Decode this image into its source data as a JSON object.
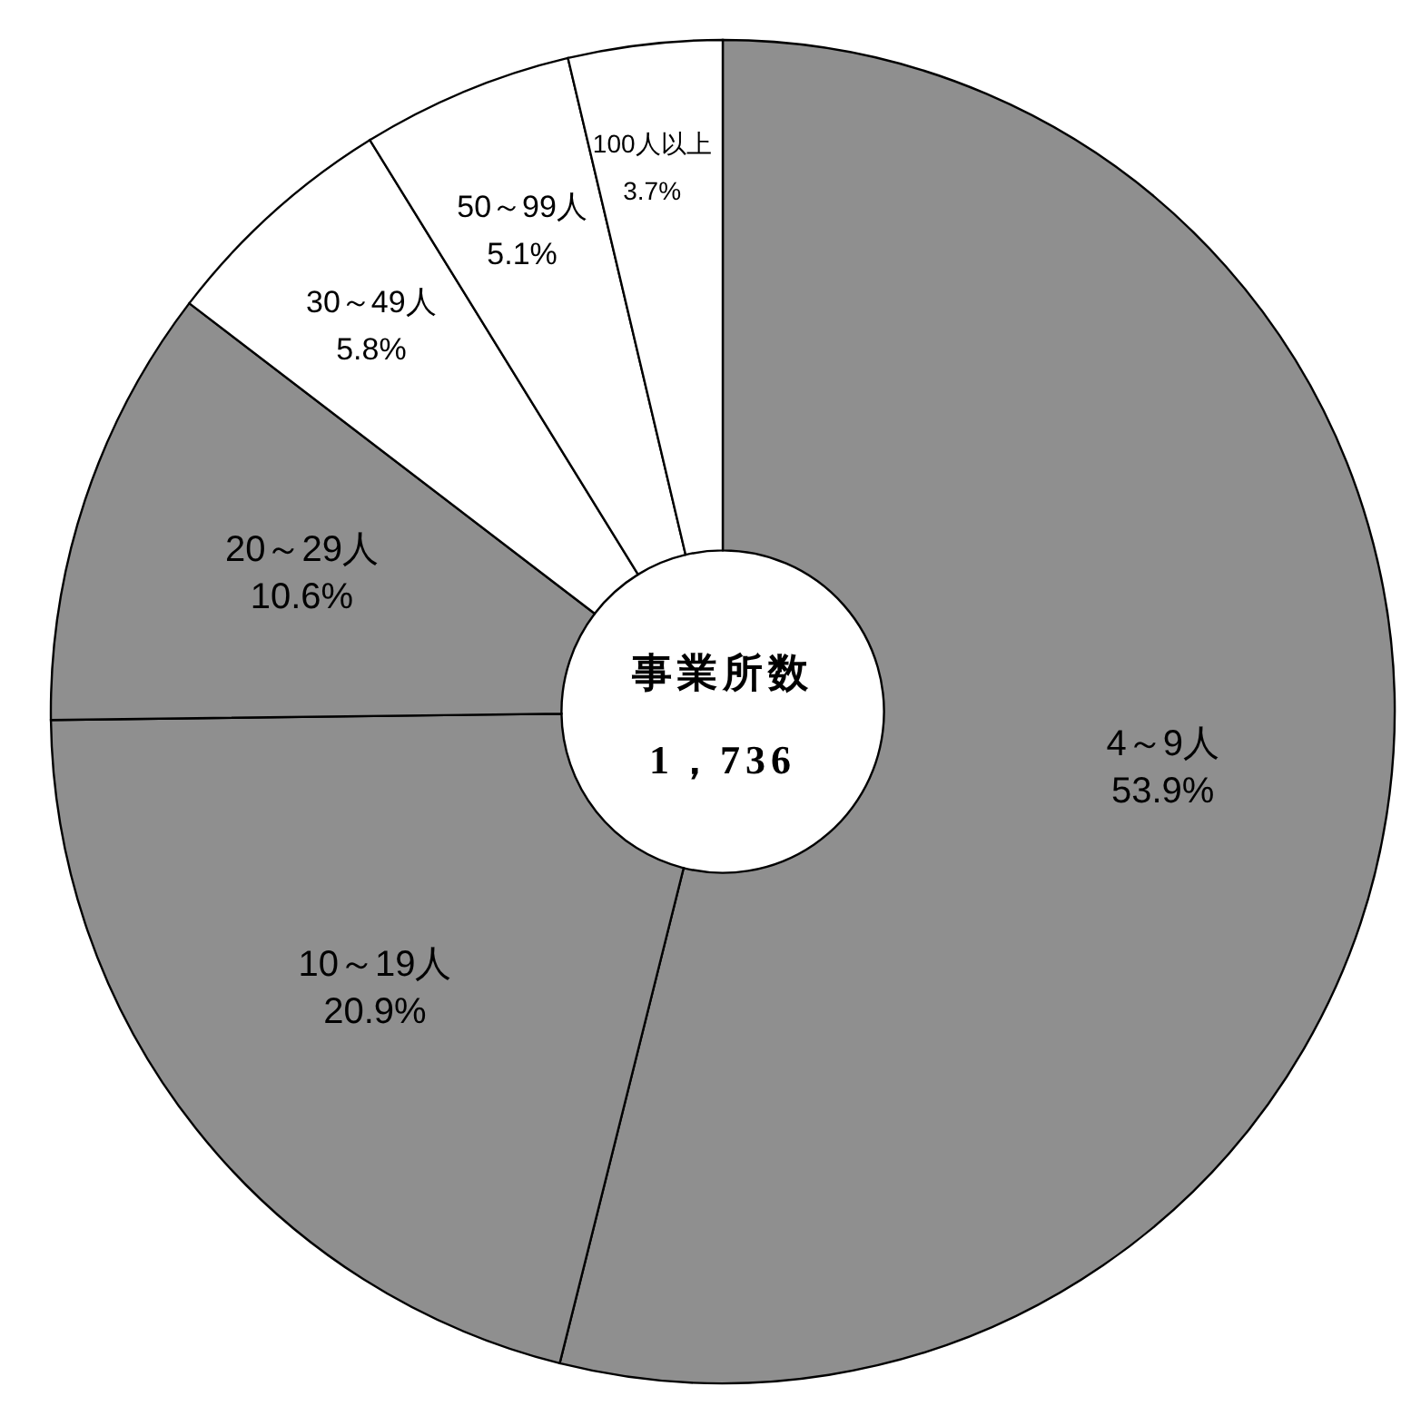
{
  "chart_data": {
    "type": "donut",
    "categories": [
      "4～9人",
      "10～19人",
      "20～29人",
      "30～49人",
      "50～99人",
      "100人以上"
    ],
    "values": [
      53.9,
      20.9,
      10.6,
      5.8,
      5.1,
      3.7
    ],
    "value_labels": [
      "53.9%",
      "20.9%",
      "10.6%",
      "5.8%",
      "5.1%",
      "3.7%"
    ],
    "colors": [
      "#8f8f8f",
      "#8f8f8f",
      "#8f8f8f",
      "#ffffff",
      "#ffffff",
      "#ffffff"
    ],
    "annotations": [
      "事業所数",
      "1，736"
    ]
  }
}
